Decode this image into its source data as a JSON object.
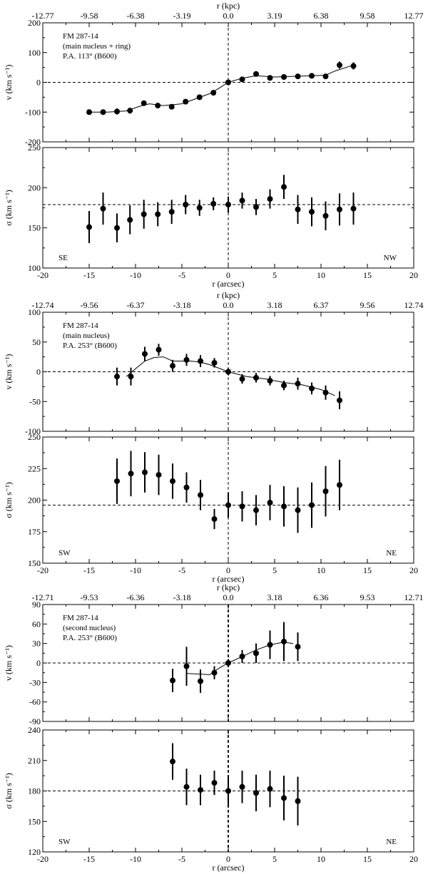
{
  "figure": {
    "panels": [
      {
        "id": "pa113",
        "top_xlabel": "r (kpc)",
        "top_ticks": [
          "-12.77",
          "-9.58",
          "-6.38",
          "-3.19",
          "0.0",
          "3.19",
          "6.38",
          "9.58",
          "12.77"
        ],
        "bottom_xlabel": "",
        "bottom_ticks": [
          "-20",
          "-15",
          "-10",
          "-5",
          "0",
          "5",
          "10",
          "15",
          "20"
        ],
        "side_left": "SE",
        "side_right": "NW",
        "annotation": [
          "FM 287-14",
          "(main nucleus + ring)",
          "P.A. 113° (B600)"
        ]
      },
      {
        "id": "pa253_main",
        "top_xlabel": "r (kpc)",
        "top_ticks": [
          "-12.74",
          "-9.56",
          "-6.37",
          "-3.18",
          "0.0",
          "3.18",
          "6.37",
          "9.56",
          "12.74"
        ],
        "bottom_xlabel": "r (arcsec)",
        "bottom_ticks": [
          "-20",
          "-15",
          "-10",
          "-5",
          "0",
          "5",
          "10",
          "15",
          "20"
        ],
        "side_left": "SW",
        "side_right": "NE",
        "annotation": [
          "FM 287-14",
          "(main nucleus)",
          "P.A. 253° (B600)"
        ]
      },
      {
        "id": "pa253_second",
        "top_xlabel": "r (kpc)",
        "top_ticks": [
          "-12.71",
          "-9.53",
          "-6.36",
          "-3.18",
          "0.0",
          "3.18",
          "6.36",
          "9.53",
          "12.71"
        ],
        "bottom_xlabel": "r (arcsec)",
        "bottom_ticks": [
          "-20",
          "-15",
          "-10",
          "-5",
          "0",
          "5",
          "10",
          "15",
          "20"
        ],
        "side_left": "SW",
        "side_right": "NE",
        "annotation": [
          "FM 287-14",
          "(second  nucleus)",
          "P.A. 253° (B600)"
        ]
      }
    ],
    "pa113_bottom_xlabel": "r (arcsec)"
  },
  "chart_data": [
    {
      "type": "scatter",
      "title": "FM 287-14 (main nucleus + ring) P.A. 113° (B600) velocity",
      "xlabel": "r (arcsec)",
      "ylabel": "v (km s⁻¹)",
      "xlim": [
        -20,
        20
      ],
      "ylim": [
        -200,
        200
      ],
      "yticks": [
        -200,
        -100,
        0,
        100,
        200
      ],
      "reference_y": 0,
      "x": [
        -15.0,
        -13.5,
        -12.0,
        -10.6,
        -9.1,
        -7.6,
        -6.1,
        -4.6,
        -3.1,
        -1.6,
        0.0,
        1.5,
        3.0,
        4.5,
        6.0,
        7.5,
        9.0,
        10.5,
        12.0,
        13.5
      ],
      "y": [
        -100,
        -100,
        -98,
        -95,
        -70,
        -78,
        -82,
        -65,
        -50,
        -35,
        0,
        10,
        28,
        15,
        18,
        20,
        22,
        20,
        58,
        55
      ],
      "yerr": [
        8,
        8,
        10,
        10,
        8,
        8,
        8,
        8,
        8,
        8,
        6,
        6,
        8,
        8,
        8,
        8,
        8,
        8,
        12,
        12
      ],
      "fit": {
        "x": [
          -15,
          -13,
          -11,
          -9.5,
          -8.5,
          -7,
          -5,
          -3.5,
          -2,
          -1,
          0,
          1.5,
          3,
          5,
          7,
          9,
          10.5,
          11.5,
          13.5
        ],
        "y": [
          -100,
          -100,
          -96,
          -80,
          -72,
          -78,
          -72,
          -55,
          -38,
          -20,
          0,
          14,
          22,
          18,
          20,
          22,
          24,
          38,
          58
        ]
      }
    },
    {
      "type": "scatter",
      "title": "FM 287-14 (main nucleus + ring) P.A. 113° (B600) dispersion",
      "xlabel": "r (arcsec)",
      "ylabel": "σ (km s⁻¹)",
      "xlim": [
        -20,
        20
      ],
      "ylim": [
        100,
        250
      ],
      "yticks": [
        100,
        150,
        200,
        250
      ],
      "reference_y": 179,
      "x": [
        -15.0,
        -13.5,
        -12.0,
        -10.6,
        -9.1,
        -7.6,
        -6.1,
        -4.6,
        -3.1,
        -1.6,
        0.0,
        1.5,
        3.0,
        4.5,
        6.0,
        7.5,
        9.0,
        10.5,
        12.0,
        13.5
      ],
      "y": [
        151,
        174,
        150,
        160,
        167,
        167,
        170,
        179,
        175,
        180,
        179,
        184,
        176,
        186,
        201,
        173,
        170,
        165,
        173,
        174
      ],
      "yerr": [
        20,
        20,
        18,
        18,
        18,
        15,
        15,
        12,
        10,
        8,
        10,
        10,
        10,
        12,
        15,
        18,
        18,
        18,
        20,
        20
      ]
    },
    {
      "type": "scatter",
      "title": "FM 287-14 (main nucleus) P.A. 253° (B600) velocity",
      "xlabel": "r (arcsec)",
      "ylabel": "v (km s⁻¹)",
      "xlim": [
        -20,
        20
      ],
      "ylim": [
        -100,
        100
      ],
      "yticks": [
        -100,
        -50,
        0,
        50,
        100
      ],
      "reference_y": 0,
      "x": [
        -12.0,
        -10.5,
        -9.0,
        -7.5,
        -6.0,
        -4.5,
        -3.0,
        -1.5,
        0.0,
        1.5,
        3.0,
        4.5,
        6.0,
        7.5,
        9.0,
        10.5,
        12.0
      ],
      "y": [
        -8,
        -8,
        30,
        37,
        10,
        20,
        18,
        15,
        0,
        -12,
        -10,
        -15,
        -23,
        -20,
        -28,
        -35,
        -48
      ],
      "yerr": [
        15,
        15,
        12,
        10,
        10,
        10,
        10,
        8,
        6,
        8,
        8,
        8,
        8,
        10,
        10,
        12,
        15
      ],
      "fit": {
        "x": [
          -11,
          -10,
          -9,
          -8,
          -7,
          -6,
          -5,
          -4,
          -3,
          -2,
          -1,
          0,
          2,
          4,
          6,
          8,
          10,
          11.5
        ],
        "y": [
          -8,
          5,
          18,
          24,
          25,
          18,
          18,
          18,
          16,
          12,
          6,
          0,
          -8,
          -12,
          -18,
          -22,
          -30,
          -40
        ]
      }
    },
    {
      "type": "scatter",
      "title": "FM 287-14 (main nucleus) P.A. 253° (B600) dispersion",
      "xlabel": "r (arcsec)",
      "ylabel": "σ (km s⁻¹)",
      "xlim": [
        -20,
        20
      ],
      "ylim": [
        150,
        250
      ],
      "yticks": [
        150,
        175,
        200,
        225,
        250
      ],
      "reference_y": 196,
      "x": [
        -12.0,
        -10.5,
        -9.0,
        -7.5,
        -6.0,
        -4.5,
        -3.0,
        -1.5,
        0.0,
        1.5,
        3.0,
        4.5,
        6.0,
        7.5,
        9.0,
        10.5,
        12.0
      ],
      "y": [
        215,
        221,
        222,
        220,
        215,
        210,
        204,
        185,
        196,
        195,
        192,
        198,
        195,
        192,
        196,
        207,
        212
      ],
      "yerr": [
        18,
        18,
        16,
        16,
        14,
        12,
        12,
        8,
        10,
        12,
        12,
        14,
        16,
        18,
        18,
        20,
        20
      ]
    },
    {
      "type": "scatter",
      "title": "FM 287-14 (second nucleus) P.A. 253° (B600) velocity",
      "xlabel": "r (arcsec)",
      "ylabel": "v (km s⁻¹)",
      "xlim": [
        -20,
        20
      ],
      "ylim": [
        -90,
        90
      ],
      "yticks": [
        -90,
        -60,
        -30,
        0,
        30,
        60,
        90
      ],
      "reference_y": 0,
      "x": [
        -6.0,
        -4.5,
        -3.0,
        -1.5,
        0.0,
        1.5,
        3.0,
        4.5,
        6.0,
        7.5
      ],
      "y": [
        -27,
        -5,
        -28,
        -15,
        0,
        10,
        15,
        28,
        33,
        25
      ],
      "yerr": [
        18,
        30,
        18,
        10,
        6,
        10,
        15,
        22,
        30,
        22
      ],
      "fit": {
        "x": [
          -4.5,
          -2,
          -1,
          0,
          1.5,
          3,
          4.5,
          6,
          7
        ],
        "y": [
          -16,
          -18,
          -8,
          0,
          10,
          20,
          28,
          32,
          30
        ]
      }
    },
    {
      "type": "scatter",
      "title": "FM 287-14 (second nucleus) P.A. 253° (B600) dispersion",
      "xlabel": "r (arcsec)",
      "ylabel": "σ (km s⁻¹)",
      "xlim": [
        -20,
        20
      ],
      "ylim": [
        120,
        240
      ],
      "yticks": [
        120,
        150,
        180,
        210,
        240
      ],
      "reference_y": 180,
      "x": [
        -6.0,
        -4.5,
        -3.0,
        -1.5,
        0.0,
        1.5,
        3.0,
        4.5,
        6.0,
        7.5
      ],
      "y": [
        209,
        184,
        181,
        188,
        180,
        184,
        178,
        182,
        173,
        170
      ],
      "yerr": [
        18,
        18,
        15,
        12,
        15,
        16,
        18,
        18,
        22,
        24
      ]
    }
  ]
}
